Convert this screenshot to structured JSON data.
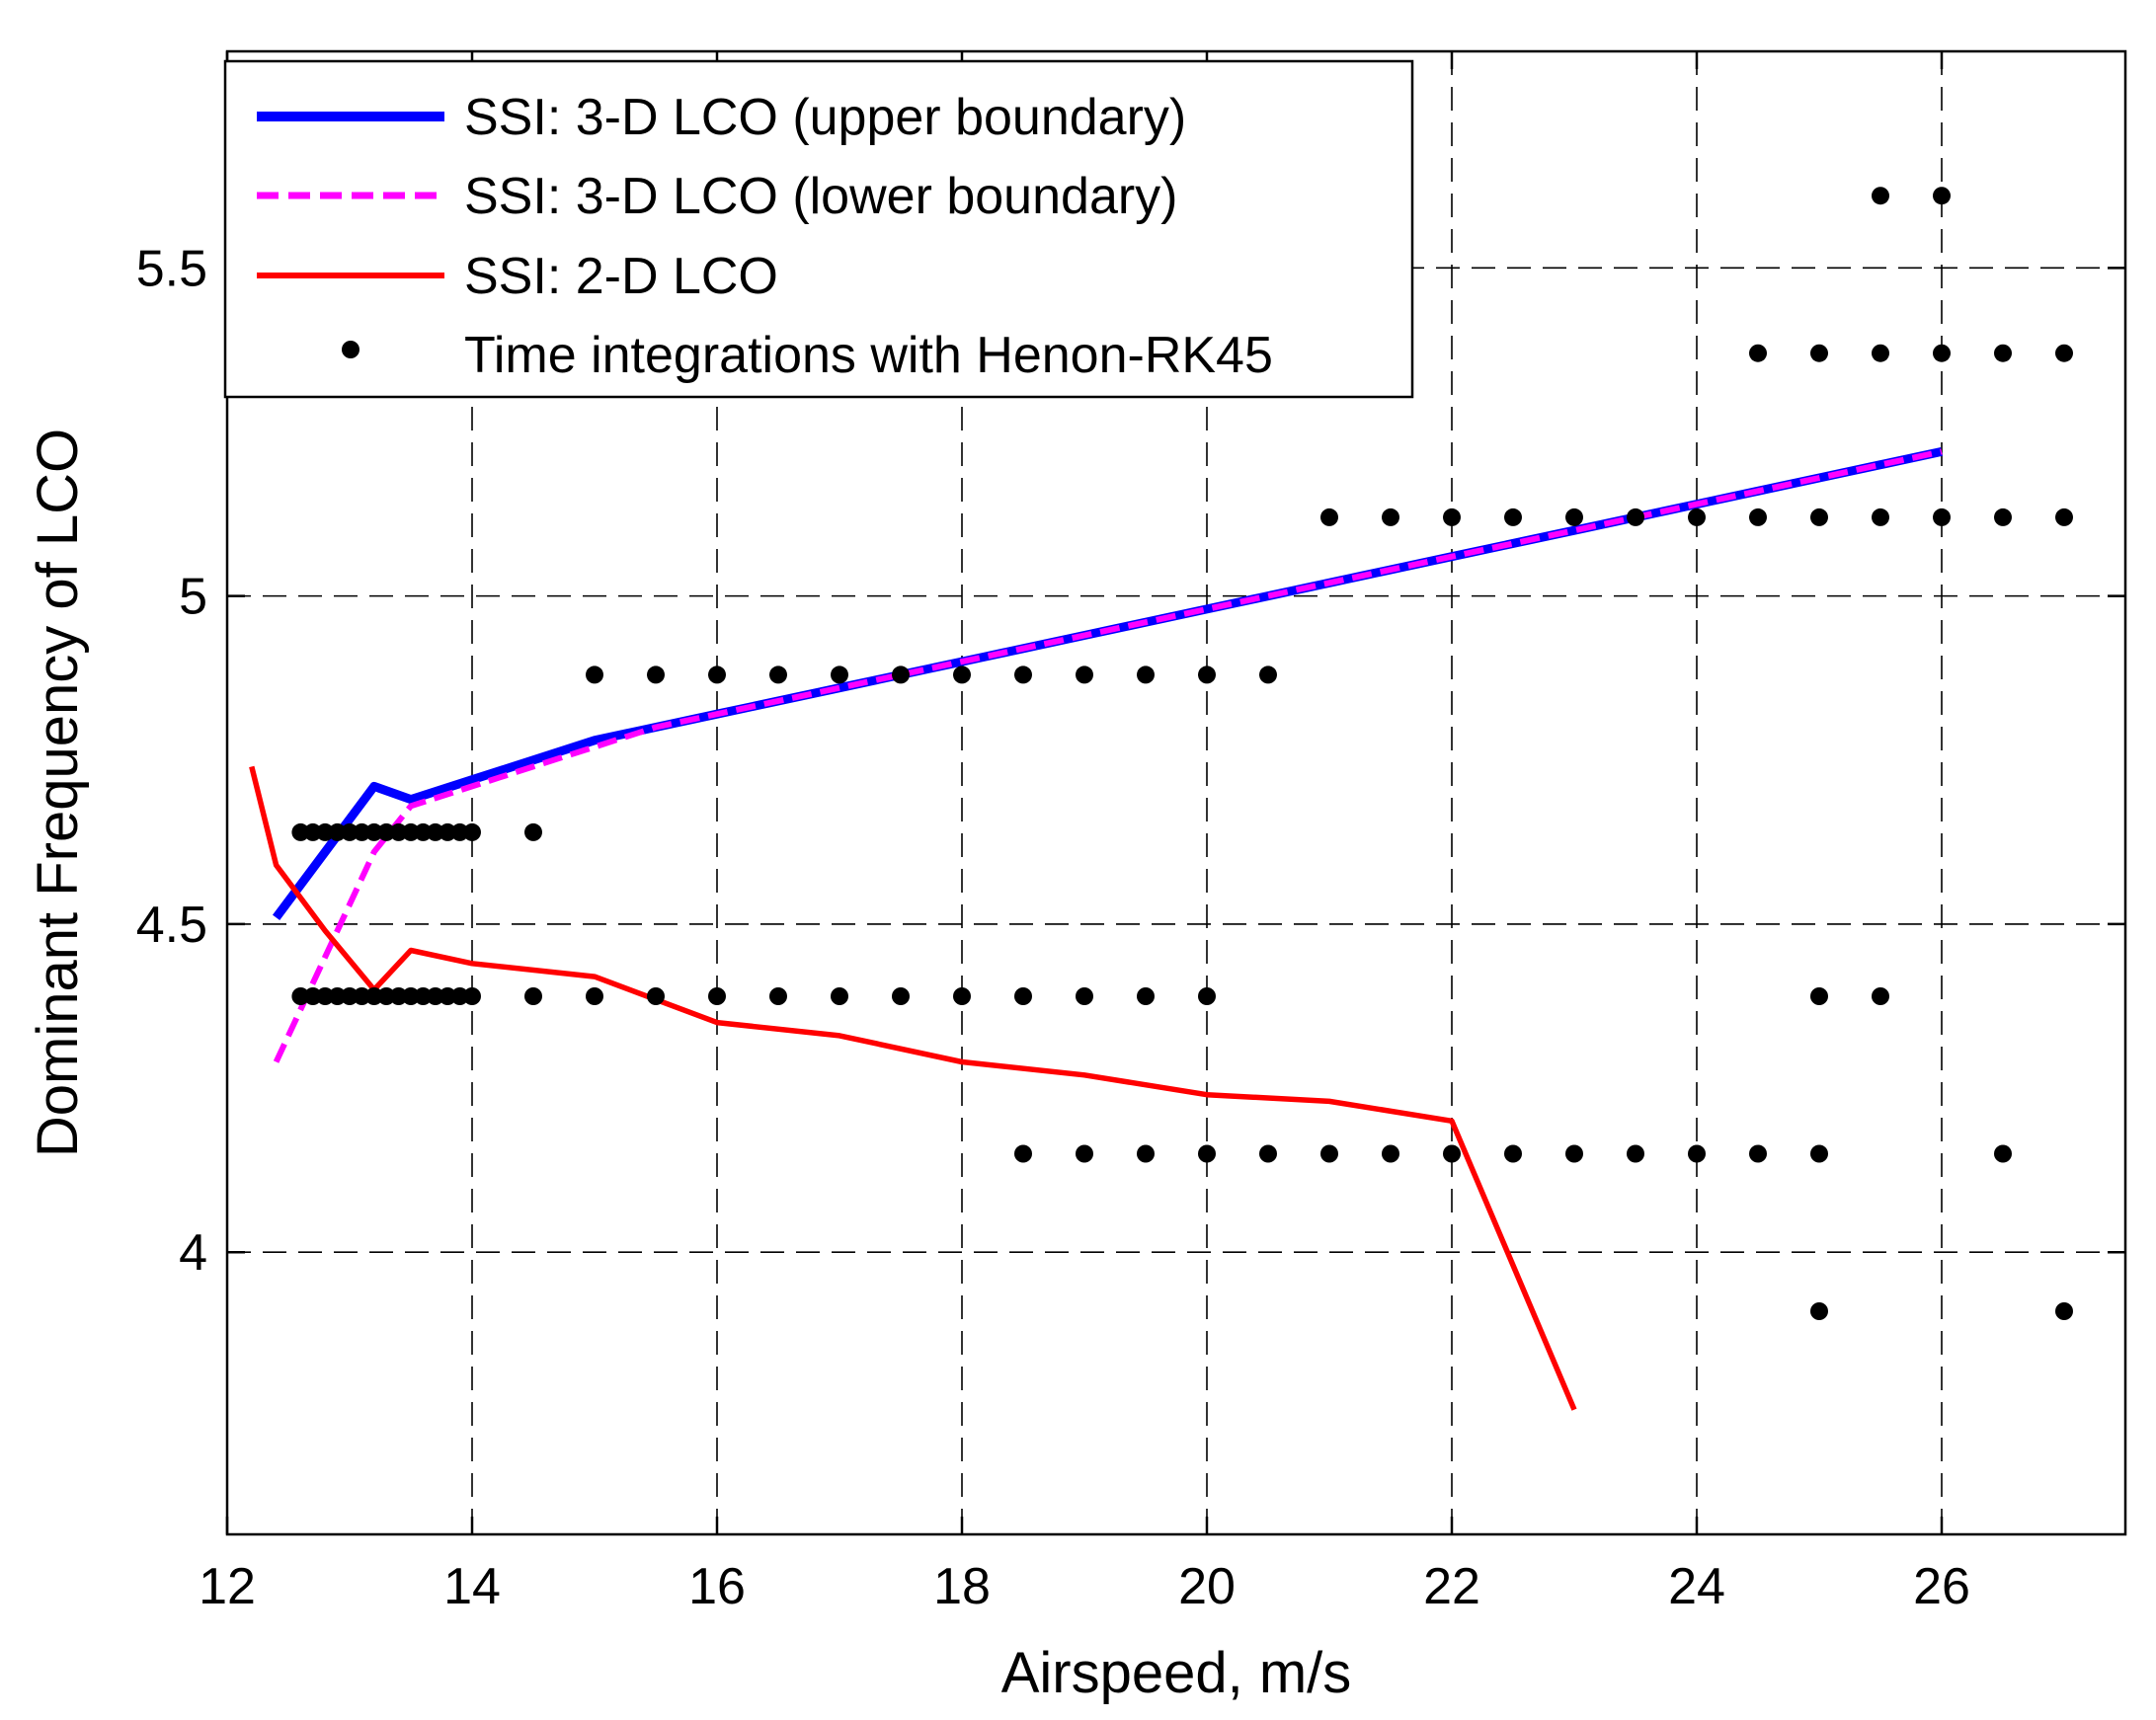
{
  "chart_data": {
    "type": "line",
    "title": "",
    "xlabel": "Airspeed, m/s",
    "ylabel": "Dominant Frequency of LCO",
    "xlim": [
      12,
      27.5
    ],
    "ylim": [
      3.57,
      5.83
    ],
    "xticks": [
      12,
      14,
      16,
      18,
      20,
      22,
      24,
      26
    ],
    "yticks": [
      4,
      4.5,
      5,
      5.5
    ],
    "xtick_labels": [
      "12",
      "14",
      "16",
      "18",
      "20",
      "22",
      "24",
      "26"
    ],
    "ytick_labels": [
      "4",
      "4.5",
      "5",
      "5.5"
    ],
    "grid": true,
    "legend_position": "top-left",
    "series": [
      {
        "name": "SSI: 3-D LCO (upper boundary)",
        "style": "solid-thick",
        "color": "#0000ff",
        "x": [
          12.4,
          13.2,
          13.5,
          14,
          14.5,
          15,
          15.5,
          16,
          17,
          18,
          19,
          20,
          21,
          22,
          23,
          24,
          24.5,
          25,
          26
        ],
        "y": [
          4.51,
          4.71,
          4.69,
          4.72,
          4.75,
          4.78,
          4.8,
          4.82,
          4.86,
          4.9,
          4.94,
          4.98,
          5.02,
          5.06,
          5.1,
          5.14,
          5.16,
          5.18,
          5.22
        ]
      },
      {
        "name": "SSI: 3-D LCO (lower boundary)",
        "style": "dashed",
        "color": "#ff00ff",
        "x": [
          12.4,
          13.2,
          13.5,
          14,
          14.5,
          15,
          15.5,
          16,
          17,
          18,
          19,
          20,
          21,
          22,
          23,
          24,
          24.5,
          25,
          26
        ],
        "y": [
          4.29,
          4.61,
          4.68,
          4.71,
          4.74,
          4.77,
          4.8,
          4.82,
          4.86,
          4.9,
          4.94,
          4.98,
          5.02,
          5.06,
          5.1,
          5.14,
          5.16,
          5.18,
          5.22
        ]
      },
      {
        "name": "SSI: 2-D LCO",
        "style": "solid",
        "color": "#ff0000",
        "x": [
          12.2,
          12.4,
          12.8,
          13.2,
          13.5,
          14,
          15,
          16,
          17,
          18,
          19,
          20,
          21,
          22,
          23
        ],
        "y": [
          4.74,
          4.59,
          4.49,
          4.4,
          4.46,
          4.44,
          4.42,
          4.35,
          4.33,
          4.29,
          4.27,
          4.24,
          4.23,
          4.2,
          3.76
        ]
      },
      {
        "name": "Time integrations with Henon-RK45",
        "style": "markers",
        "color": "#000000",
        "points": [
          [
            12.6,
            4.64
          ],
          [
            12.7,
            4.64
          ],
          [
            12.8,
            4.64
          ],
          [
            12.9,
            4.64
          ],
          [
            13.0,
            4.64
          ],
          [
            13.1,
            4.64
          ],
          [
            13.2,
            4.64
          ],
          [
            13.3,
            4.64
          ],
          [
            13.4,
            4.64
          ],
          [
            13.5,
            4.64
          ],
          [
            13.6,
            4.64
          ],
          [
            13.7,
            4.64
          ],
          [
            13.8,
            4.64
          ],
          [
            13.9,
            4.64
          ],
          [
            14.0,
            4.64
          ],
          [
            14.5,
            4.64
          ],
          [
            12.6,
            4.39
          ],
          [
            12.7,
            4.39
          ],
          [
            12.8,
            4.39
          ],
          [
            12.9,
            4.39
          ],
          [
            13.0,
            4.39
          ],
          [
            13.1,
            4.39
          ],
          [
            13.2,
            4.39
          ],
          [
            13.3,
            4.39
          ],
          [
            13.4,
            4.39
          ],
          [
            13.5,
            4.39
          ],
          [
            13.6,
            4.39
          ],
          [
            13.7,
            4.39
          ],
          [
            13.8,
            4.39
          ],
          [
            13.9,
            4.39
          ],
          [
            14.0,
            4.39
          ],
          [
            14.5,
            4.39
          ],
          [
            15.0,
            4.39
          ],
          [
            15.5,
            4.39
          ],
          [
            16.0,
            4.39
          ],
          [
            16.5,
            4.39
          ],
          [
            17.0,
            4.39
          ],
          [
            17.5,
            4.39
          ],
          [
            18.0,
            4.39
          ],
          [
            18.5,
            4.39
          ],
          [
            19.0,
            4.39
          ],
          [
            19.5,
            4.39
          ],
          [
            20.0,
            4.39
          ],
          [
            25.0,
            4.39
          ],
          [
            25.5,
            4.39
          ],
          [
            15.0,
            4.88
          ],
          [
            15.5,
            4.88
          ],
          [
            16.0,
            4.88
          ],
          [
            16.5,
            4.88
          ],
          [
            17.0,
            4.88
          ],
          [
            17.5,
            4.88
          ],
          [
            18.0,
            4.88
          ],
          [
            18.5,
            4.88
          ],
          [
            19.0,
            4.88
          ],
          [
            19.5,
            4.88
          ],
          [
            20.0,
            4.88
          ],
          [
            20.5,
            4.88
          ],
          [
            21.0,
            5.12
          ],
          [
            21.5,
            5.12
          ],
          [
            22.0,
            5.12
          ],
          [
            22.5,
            5.12
          ],
          [
            23.0,
            5.12
          ],
          [
            23.5,
            5.12
          ],
          [
            24.0,
            5.12
          ],
          [
            24.5,
            5.12
          ],
          [
            25.0,
            5.12
          ],
          [
            25.5,
            5.12
          ],
          [
            26.0,
            5.12
          ],
          [
            26.5,
            5.12
          ],
          [
            27.0,
            5.12
          ],
          [
            24.5,
            5.37
          ],
          [
            25.0,
            5.37
          ],
          [
            25.5,
            5.37
          ],
          [
            26.0,
            5.37
          ],
          [
            26.5,
            5.37
          ],
          [
            27.0,
            5.37
          ],
          [
            25.5,
            5.61
          ],
          [
            26.0,
            5.61
          ],
          [
            18.5,
            4.15
          ],
          [
            19.0,
            4.15
          ],
          [
            19.5,
            4.15
          ],
          [
            20.0,
            4.15
          ],
          [
            20.5,
            4.15
          ],
          [
            21.0,
            4.15
          ],
          [
            21.5,
            4.15
          ],
          [
            22.0,
            4.15
          ],
          [
            22.5,
            4.15
          ],
          [
            23.0,
            4.15
          ],
          [
            23.5,
            4.15
          ],
          [
            24.0,
            4.15
          ],
          [
            24.5,
            4.15
          ],
          [
            25.0,
            4.15
          ],
          [
            26.5,
            4.15
          ],
          [
            25.0,
            3.91
          ],
          [
            27.0,
            3.91
          ]
        ]
      }
    ]
  }
}
